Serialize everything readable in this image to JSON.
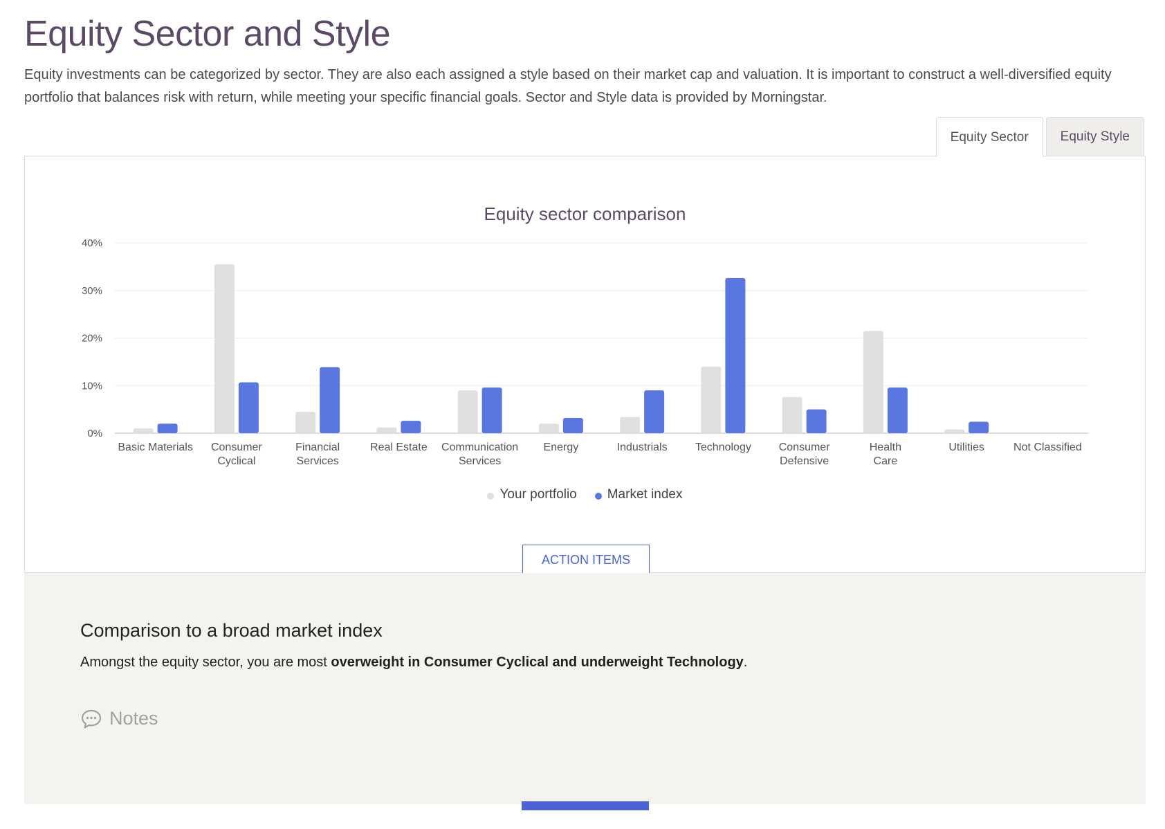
{
  "page": {
    "title": "Equity Sector and Style",
    "intro": "Equity investments can be categorized by sector. They are also each assigned a style based on their market cap and valuation. It is important to construct a well-diversified equity portfolio that balances risk with return, while meeting your specific financial goals. Sector and Style data is provided by Morningstar."
  },
  "tabs": [
    {
      "label": "Equity Sector",
      "active": true
    },
    {
      "label": "Equity Style",
      "active": false
    }
  ],
  "chart_data": {
    "type": "bar",
    "title": "Equity sector comparison",
    "xlabel": "",
    "ylabel": "",
    "ylim": [
      0,
      40
    ],
    "yticks": [
      "0%",
      "10%",
      "20%",
      "30%",
      "40%"
    ],
    "grid": true,
    "legend_position": "bottom",
    "categories": [
      "Basic Materials",
      "Consumer Cyclical",
      "Financial Services",
      "Real Estate",
      "Communication Services",
      "Energy",
      "Industrials",
      "Technology",
      "Consumer Defensive",
      "Health Care",
      "Utilities",
      "Not Classified"
    ],
    "series": [
      {
        "name": "Your portfolio",
        "color": "#e0e0e0",
        "values": [
          1.0,
          35.5,
          4.5,
          1.2,
          9.0,
          2.0,
          3.4,
          14.0,
          7.6,
          21.5,
          0.8,
          0
        ]
      },
      {
        "name": "Market index",
        "color": "#5a76e0",
        "values": [
          2.0,
          10.7,
          13.9,
          2.6,
          9.6,
          3.2,
          9.0,
          32.6,
          5.0,
          9.6,
          2.4,
          0
        ]
      }
    ]
  },
  "action_button": {
    "label": "ACTION ITEMS"
  },
  "drawer": {
    "title": "Comparison to a broad market index",
    "text_prefix": "Amongst the equity sector, you are most ",
    "text_bold": "overweight in Consumer Cyclical and underweight Technology",
    "text_suffix": ".",
    "notes_label": "Notes",
    "notes_icon": "speech-bubble-icon"
  }
}
